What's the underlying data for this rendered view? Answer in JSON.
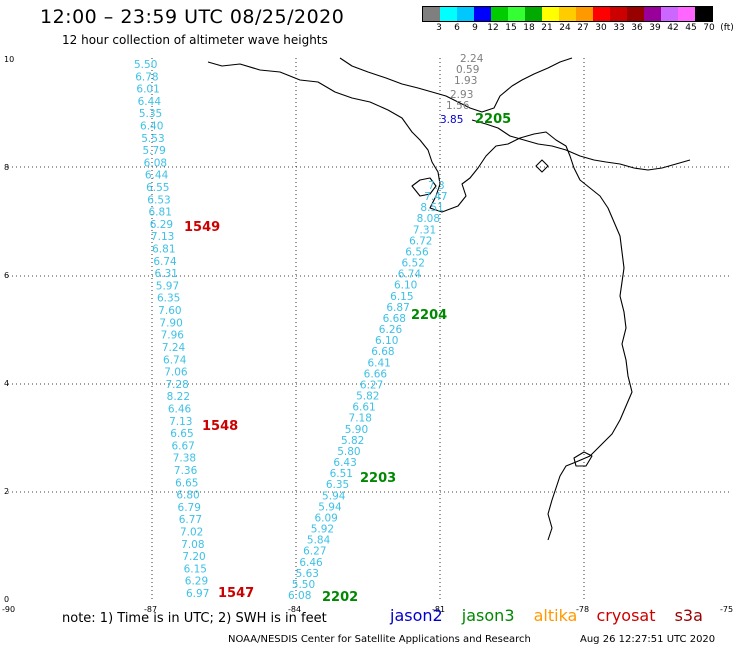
{
  "header": {
    "title": "12:00 – 23:59 UTC 08/25/2020",
    "subtitle": "12 hour collection of altimeter wave heights"
  },
  "colorbar": {
    "colors": [
      "#7f7f7f",
      "#00ffff",
      "#00c8ff",
      "#0000ff",
      "#00cc00",
      "#33ff33",
      "#00aa00",
      "#ffff00",
      "#ffcc00",
      "#ff9900",
      "#ff0000",
      "#cc0000",
      "#990000",
      "#990099",
      "#cc66ff",
      "#ff66ff",
      "#000000"
    ],
    "labels": [
      "3",
      "6",
      "9",
      "12",
      "15",
      "18",
      "21",
      "24",
      "27",
      "30",
      "33",
      "36",
      "39",
      "42",
      "45",
      "70",
      "(ft)"
    ]
  },
  "map": {
    "lon_ticks": [
      "-90",
      "-87",
      "-84",
      "-81",
      "-78",
      "-75"
    ],
    "lat_ticks": [
      "0",
      "2",
      "4",
      "6",
      "8",
      "10"
    ],
    "track_colors": {
      "wave": "#3ec1e6",
      "wave_dark": "#7f7f7f",
      "wave_blue": "#0000cc"
    },
    "west_track": {
      "values": [
        "5.50",
        "6.78",
        "6.01",
        "6.44",
        "5.35",
        "6.40",
        "5.53",
        "5.79",
        "6.08",
        "6.44",
        "6.55",
        "6.53",
        "6.81",
        "6.29",
        "7.13",
        "6.81",
        "6.74",
        "6.31",
        "5.97",
        "6.35",
        "7.60",
        "7.90",
        "7.96",
        "7.24",
        "6.74",
        "7.06",
        "7.28",
        "8.22",
        "6.46",
        "7.13",
        "6.65",
        "6.67",
        "7.38",
        "7.36",
        "6.65",
        "6.80",
        "6.79",
        "6.77",
        "7.02",
        "7.08",
        "7.20",
        "6.15",
        "6.29",
        "6.97"
      ]
    },
    "east_track": {
      "values": [
        "6.08",
        "5.50",
        "5.63",
        "6.46",
        "6.27",
        "5.84",
        "5.92",
        "6.09",
        "5.94",
        "5.94",
        "6.35",
        "6.51",
        "6.43",
        "5.80",
        "5.82",
        "5.90",
        "7.18",
        "6.61",
        "5.82",
        "6.27",
        "6.66",
        "6.41",
        "6.68",
        "6.10",
        "6.26",
        "6.68",
        "6.87",
        "6.15",
        "6.10",
        "6.74",
        "6.52",
        "6.56",
        "6.72",
        "7.31",
        "8.08",
        "8.51",
        "7.47",
        "7.3"
      ]
    },
    "north_track": {
      "values": [
        "2.24",
        "0.59",
        "1.93",
        "2.93",
        "1.56",
        "3.85"
      ]
    },
    "pass_times": [
      {
        "label": "1549",
        "color": "#cc0000"
      },
      {
        "label": "1548",
        "color": "#cc0000"
      },
      {
        "label": "1547",
        "color": "#cc0000"
      },
      {
        "label": "2205",
        "color": "#008800"
      },
      {
        "label": "2204",
        "color": "#008800"
      },
      {
        "label": "2203",
        "color": "#008800"
      },
      {
        "label": "2202",
        "color": "#008800"
      }
    ]
  },
  "footer": {
    "note": "note:  1) Time is in UTC;  2) SWH is in feet",
    "satellites": [
      {
        "name": "jason2",
        "color": "#0000cc"
      },
      {
        "name": "jason3",
        "color": "#008800"
      },
      {
        "name": "altika",
        "color": "#ff9900"
      },
      {
        "name": "cryosat",
        "color": "#cc0000"
      },
      {
        "name": "s3a",
        "color": "#990000"
      }
    ],
    "credit": "NOAA/NESDIS Center for Satellite Applications and Research",
    "timestamp": "Aug 26 12:27:51 UTC 2020"
  }
}
